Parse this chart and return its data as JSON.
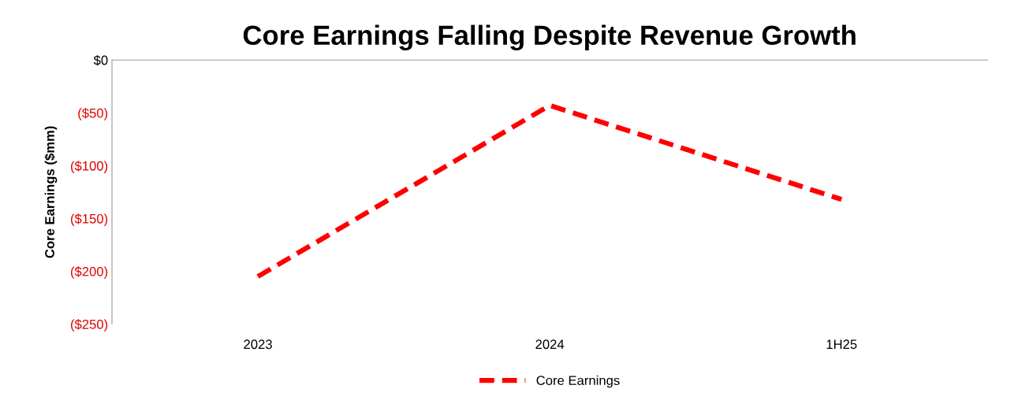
{
  "chart_data": {
    "type": "line",
    "title": "Core Earnings Falling Despite Revenue Growth",
    "ylabel": "Core Earnings ($mm)",
    "categories": [
      "2023",
      "2024",
      "1H25"
    ],
    "series": [
      {
        "name": "Core Earnings",
        "color": "#ff0000",
        "values": [
          -205,
          -43,
          -132
        ]
      }
    ],
    "ylim": [
      -250,
      0
    ],
    "yticks": [
      {
        "value": 0,
        "label": "$0"
      },
      {
        "value": -50,
        "label": "($50)"
      },
      {
        "value": -100,
        "label": "($100)"
      },
      {
        "value": -150,
        "label": "($150)"
      },
      {
        "value": -200,
        "label": "($200)"
      },
      {
        "value": -250,
        "label": "($250)"
      }
    ],
    "line_style": "dashed",
    "marker": "none",
    "grid": false,
    "legend": "bottom"
  }
}
